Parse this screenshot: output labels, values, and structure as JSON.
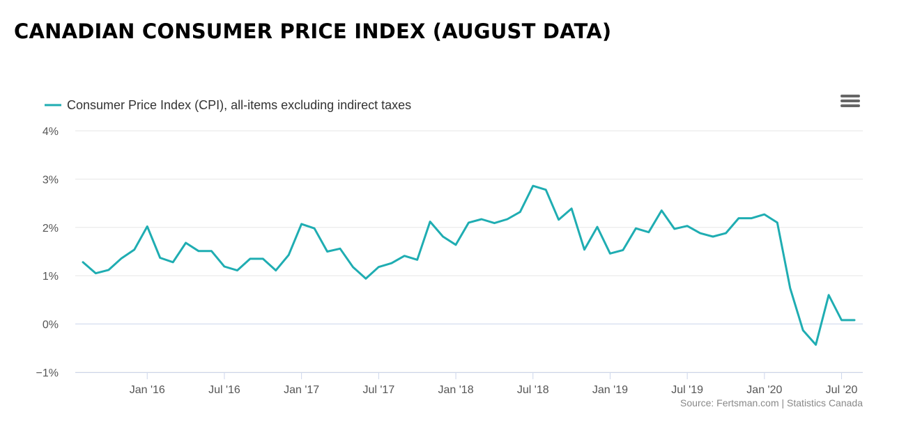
{
  "title": "CANADIAN CONSUMER PRICE INDEX (AUGUST DATA)",
  "menu_icon": "hamburger-menu-icon",
  "source": "Source: Fertsman.com | Statistics Canada",
  "colors": {
    "line": "#1fadb2",
    "grid": "#e6e6e6",
    "zero_line": "#ccd6eb",
    "axis": "#ccd6eb"
  },
  "chart_data": {
    "type": "line",
    "title": "",
    "xlabel": "",
    "ylabel": "",
    "ylim": [
      -1,
      4
    ],
    "y_ticks": [
      -1,
      0,
      1,
      2,
      3,
      4
    ],
    "y_tick_labels": [
      "−1%",
      "0%",
      "1%",
      "2%",
      "3%",
      "4%"
    ],
    "x_ticks": [
      {
        "label": "Jan '16",
        "index": 5
      },
      {
        "label": "Jul '16",
        "index": 11
      },
      {
        "label": "Jan '17",
        "index": 17
      },
      {
        "label": "Jul '17",
        "index": 23
      },
      {
        "label": "Jan '18",
        "index": 29
      },
      {
        "label": "Jul '18",
        "index": 35
      },
      {
        "label": "Jan '19",
        "index": 41
      },
      {
        "label": "Jul '19",
        "index": 47
      },
      {
        "label": "Jan '20",
        "index": 53
      },
      {
        "label": "Jul '20",
        "index": 59
      }
    ],
    "x_start": "Aug 2015",
    "x_end": "Aug 2020",
    "series": [
      {
        "name": "Consumer Price Index (CPI), all-items excluding indirect taxes",
        "values": [
          1.28,
          1.05,
          1.12,
          1.36,
          1.54,
          2.02,
          1.37,
          1.28,
          1.68,
          1.51,
          1.51,
          1.19,
          1.11,
          1.35,
          1.35,
          1.11,
          1.43,
          2.07,
          1.98,
          1.5,
          1.56,
          1.18,
          0.94,
          1.18,
          1.26,
          1.41,
          1.33,
          2.12,
          1.81,
          1.64,
          2.1,
          2.17,
          2.09,
          2.17,
          2.32,
          2.86,
          2.78,
          2.16,
          2.39,
          1.54,
          2.01,
          1.46,
          1.53,
          1.98,
          1.9,
          2.35,
          1.97,
          2.03,
          1.88,
          1.81,
          1.88,
          2.19,
          2.19,
          2.27,
          2.1,
          0.74,
          -0.13,
          -0.43,
          0.6,
          0.08,
          0.08
        ]
      }
    ],
    "legend_position": "top-left"
  }
}
